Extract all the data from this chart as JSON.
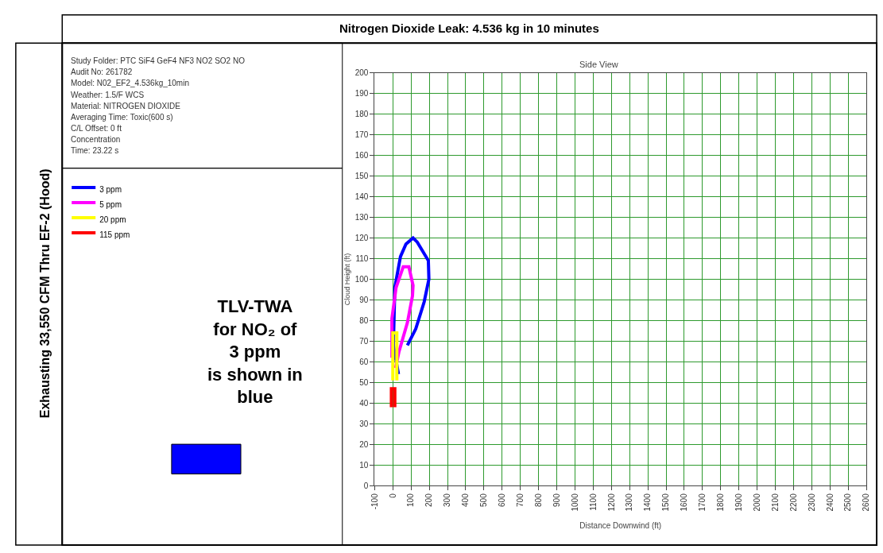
{
  "chart_data": {
    "type": "line",
    "title": "Nitrogen Dioxide Leak: 4.536 kg in 10 minutes",
    "subtitle": "Side View",
    "xlabel": "Distance Downwind (ft)",
    "ylabel": "Cloud Height (ft)",
    "annotations": [
      "Exhausting 33,550 CFM Thru EF-2 (Hood)",
      "Study Folder: PTC SiF4 GeF4 NF3 NO2 SO2 NO",
      "Audit No: 261782",
      "Model: N02_EF2_4.536kg_10min",
      "Weather: 1.5/F WCS",
      "Material: NITROGEN DIOXIDE",
      "Averaging Time: Toxic(600 s)",
      "C/L Offset: 0 ft",
      "Concentration",
      "Time: 23.22 s",
      "TLV-TWA\nfor NO₂ of\n3 ppm\nis shown in\nblue"
    ],
    "series": [
      {
        "name": "3 ppm",
        "color": "#0000ff",
        "x": [
          31,
          3,
          11,
          42,
          72,
          111,
          134,
          195,
          198,
          172,
          126,
          80
        ],
        "values": [
          54,
          68,
          96,
          111,
          117,
          120,
          118,
          109,
          100,
          89,
          76,
          68
        ]
      },
      {
        "name": "5 ppm",
        "color": "#ff00ff",
        "x": [
          -5,
          -5,
          18,
          57,
          88,
          111,
          108,
          80,
          34,
          15
        ],
        "values": [
          62,
          81,
          96,
          106,
          106,
          97,
          92,
          79,
          65,
          57
        ]
      },
      {
        "name": "20 ppm",
        "color": "#ffff00",
        "x": [
          0,
          0,
          22,
          22
        ],
        "values": [
          51,
          74,
          74,
          51
        ]
      },
      {
        "name": "115 ppm",
        "color": "#ff0000",
        "x": [
          -8,
          -8,
          11,
          11
        ],
        "values": [
          38,
          47,
          47,
          38
        ]
      }
    ],
    "xlim": [
      -100,
      2600
    ],
    "xticks": [
      -100,
      0,
      100,
      200,
      300,
      400,
      500,
      600,
      700,
      800,
      900,
      1000,
      1100,
      1200,
      1300,
      1400,
      1500,
      1600,
      1700,
      1800,
      1900,
      2000,
      2100,
      2200,
      2300,
      2400,
      2500,
      2600
    ],
    "ylim": [
      0,
      200
    ],
    "yticks": [
      0,
      10,
      20,
      30,
      40,
      50,
      60,
      70,
      80,
      90,
      100,
      110,
      120,
      130,
      140,
      150,
      160,
      170,
      180,
      190,
      200
    ],
    "grid": true,
    "legend": "left",
    "marker": "none",
    "line_style": "solid"
  }
}
